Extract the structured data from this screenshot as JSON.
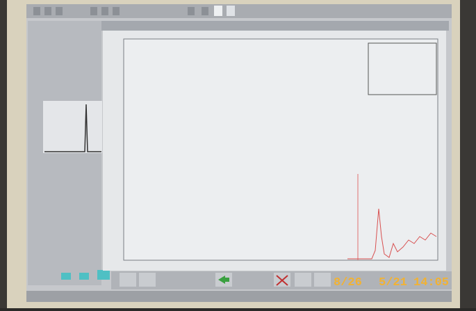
{
  "camera_stamp": {
    "date": "8/26",
    "day": "5/21",
    "time": "14:05"
  }
}
